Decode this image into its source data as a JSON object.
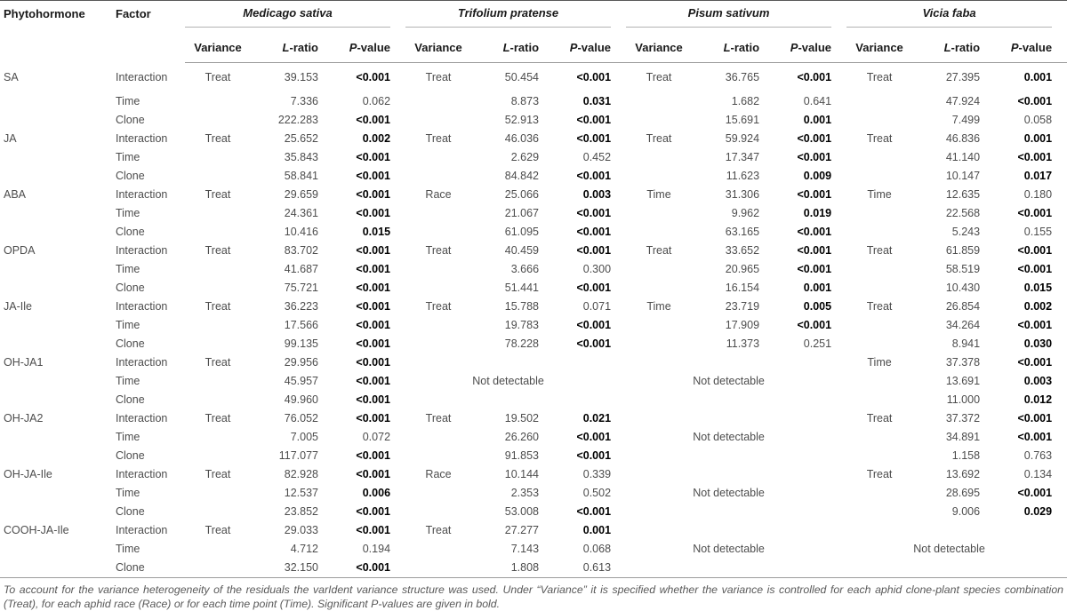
{
  "header": {
    "phytohormone": "Phytohormone",
    "factor": "Factor",
    "species": [
      "Medicago sativa",
      "Trifolium pratense",
      "Pisum sativum",
      "Vicia faba"
    ],
    "subcols": [
      "Variance",
      "L-ratio",
      "P-value"
    ]
  },
  "not_detectable_label": "Not detectable",
  "rows": [
    {
      "hormone": "SA",
      "factors": [
        "Interaction",
        "Time",
        "Clone"
      ],
      "groups": [
        {
          "variance": "Treat",
          "cells": [
            [
              "39.153",
              "<0.001",
              true
            ],
            [
              "7.336",
              "0.062",
              false
            ],
            [
              "222.283",
              "<0.001",
              true
            ]
          ]
        },
        {
          "variance": "Treat",
          "cells": [
            [
              "50.454",
              "<0.001",
              true
            ],
            [
              "8.873",
              "0.031",
              true
            ],
            [
              "52.913",
              "<0.001",
              true
            ]
          ]
        },
        {
          "variance": "Treat",
          "cells": [
            [
              "36.765",
              "<0.001",
              true
            ],
            [
              "1.682",
              "0.641",
              false
            ],
            [
              "15.691",
              "0.001",
              true
            ]
          ]
        },
        {
          "variance": "Treat",
          "cells": [
            [
              "27.395",
              "0.001",
              true
            ],
            [
              "47.924",
              "<0.001",
              true
            ],
            [
              "7.499",
              "0.058",
              false
            ]
          ]
        }
      ]
    },
    {
      "hormone": "JA",
      "factors": [
        "Interaction",
        "Time",
        "Clone"
      ],
      "groups": [
        {
          "variance": "Treat",
          "cells": [
            [
              "25.652",
              "0.002",
              true
            ],
            [
              "35.843",
              "<0.001",
              true
            ],
            [
              "58.841",
              "<0.001",
              true
            ]
          ]
        },
        {
          "variance": "Treat",
          "cells": [
            [
              "46.036",
              "<0.001",
              true
            ],
            [
              "2.629",
              "0.452",
              false
            ],
            [
              "84.842",
              "<0.001",
              true
            ]
          ]
        },
        {
          "variance": "Treat",
          "cells": [
            [
              "59.924",
              "<0.001",
              true
            ],
            [
              "17.347",
              "<0.001",
              true
            ],
            [
              "11.623",
              "0.009",
              true
            ]
          ]
        },
        {
          "variance": "Treat",
          "cells": [
            [
              "46.836",
              "0.001",
              true
            ],
            [
              "41.140",
              "<0.001",
              true
            ],
            [
              "10.147",
              "0.017",
              true
            ]
          ]
        }
      ]
    },
    {
      "hormone": "ABA",
      "factors": [
        "Interaction",
        "Time",
        "Clone"
      ],
      "groups": [
        {
          "variance": "Treat",
          "cells": [
            [
              "29.659",
              "<0.001",
              true
            ],
            [
              "24.361",
              "<0.001",
              true
            ],
            [
              "10.416",
              "0.015",
              true
            ]
          ]
        },
        {
          "variance": "Race",
          "cells": [
            [
              "25.066",
              "0.003",
              true
            ],
            [
              "21.067",
              "<0.001",
              true
            ],
            [
              "61.095",
              "<0.001",
              true
            ]
          ]
        },
        {
          "variance": "Time",
          "cells": [
            [
              "31.306",
              "<0.001",
              true
            ],
            [
              "9.962",
              "0.019",
              true
            ],
            [
              "63.165",
              "<0.001",
              true
            ]
          ]
        },
        {
          "variance": "Time",
          "cells": [
            [
              "12.635",
              "0.180",
              false
            ],
            [
              "22.568",
              "<0.001",
              true
            ],
            [
              "5.243",
              "0.155",
              false
            ]
          ]
        }
      ]
    },
    {
      "hormone": "OPDA",
      "factors": [
        "Interaction",
        "Time",
        "Clone"
      ],
      "groups": [
        {
          "variance": "Treat",
          "cells": [
            [
              "83.702",
              "<0.001",
              true
            ],
            [
              "41.687",
              "<0.001",
              true
            ],
            [
              "75.721",
              "<0.001",
              true
            ]
          ]
        },
        {
          "variance": "Treat",
          "cells": [
            [
              "40.459",
              "<0.001",
              true
            ],
            [
              "3.666",
              "0.300",
              false
            ],
            [
              "51.441",
              "<0.001",
              true
            ]
          ]
        },
        {
          "variance": "Treat",
          "cells": [
            [
              "33.652",
              "<0.001",
              true
            ],
            [
              "20.965",
              "<0.001",
              true
            ],
            [
              "16.154",
              "0.001",
              true
            ]
          ]
        },
        {
          "variance": "Treat",
          "cells": [
            [
              "61.859",
              "<0.001",
              true
            ],
            [
              "58.519",
              "<0.001",
              true
            ],
            [
              "10.430",
              "0.015",
              true
            ]
          ]
        }
      ]
    },
    {
      "hormone": "JA-Ile",
      "factors": [
        "Interaction",
        "Time",
        "Clone"
      ],
      "groups": [
        {
          "variance": "Treat",
          "cells": [
            [
              "36.223",
              "<0.001",
              true
            ],
            [
              "17.566",
              "<0.001",
              true
            ],
            [
              "99.135",
              "<0.001",
              true
            ]
          ]
        },
        {
          "variance": "Treat",
          "cells": [
            [
              "15.788",
              "0.071",
              false
            ],
            [
              "19.783",
              "<0.001",
              true
            ],
            [
              "78.228",
              "<0.001",
              true
            ]
          ]
        },
        {
          "variance": "Time",
          "cells": [
            [
              "23.719",
              "0.005",
              true
            ],
            [
              "17.909",
              "<0.001",
              true
            ],
            [
              "11.373",
              "0.251",
              false
            ]
          ]
        },
        {
          "variance": "Treat",
          "cells": [
            [
              "26.854",
              "0.002",
              true
            ],
            [
              "34.264",
              "<0.001",
              true
            ],
            [
              "8.941",
              "0.030",
              true
            ]
          ]
        }
      ]
    },
    {
      "hormone": "OH-JA1",
      "factors": [
        "Interaction",
        "Time",
        "Clone"
      ],
      "groups": [
        {
          "variance": "Treat",
          "cells": [
            [
              "29.956",
              "<0.001",
              true
            ],
            [
              "45.957",
              "<0.001",
              true
            ],
            [
              "49.960",
              "<0.001",
              true
            ]
          ]
        },
        {
          "not_detectable": true
        },
        {
          "not_detectable": true
        },
        {
          "variance": "Time",
          "cells": [
            [
              "37.378",
              "<0.001",
              true
            ],
            [
              "13.691",
              "0.003",
              true
            ],
            [
              "11.000",
              "0.012",
              true
            ]
          ]
        }
      ]
    },
    {
      "hormone": "OH-JA2",
      "factors": [
        "Interaction",
        "Time",
        "Clone"
      ],
      "groups": [
        {
          "variance": "Treat",
          "cells": [
            [
              "76.052",
              "<0.001",
              true
            ],
            [
              "7.005",
              "0.072",
              false
            ],
            [
              "117.077",
              "<0.001",
              true
            ]
          ]
        },
        {
          "variance": "Treat",
          "cells": [
            [
              "19.502",
              "0.021",
              true
            ],
            [
              "26.260",
              "<0.001",
              true
            ],
            [
              "91.853",
              "<0.001",
              true
            ]
          ]
        },
        {
          "not_detectable": true
        },
        {
          "variance": "Treat",
          "cells": [
            [
              "37.372",
              "<0.001",
              true
            ],
            [
              "34.891",
              "<0.001",
              true
            ],
            [
              "1.158",
              "0.763",
              false
            ]
          ]
        }
      ]
    },
    {
      "hormone": "OH-JA-Ile",
      "factors": [
        "Interaction",
        "Time",
        "Clone"
      ],
      "groups": [
        {
          "variance": "Treat",
          "cells": [
            [
              "82.928",
              "<0.001",
              true
            ],
            [
              "12.537",
              "0.006",
              true
            ],
            [
              "23.852",
              "<0.001",
              true
            ]
          ]
        },
        {
          "variance": "Race",
          "cells": [
            [
              "10.144",
              "0.339",
              false
            ],
            [
              "2.353",
              "0.502",
              false
            ],
            [
              "53.008",
              "<0.001",
              true
            ]
          ]
        },
        {
          "not_detectable": true
        },
        {
          "variance": "Treat",
          "cells": [
            [
              "13.692",
              "0.134",
              false
            ],
            [
              "28.695",
              "<0.001",
              true
            ],
            [
              "9.006",
              "0.029",
              true
            ]
          ]
        }
      ]
    },
    {
      "hormone": "COOH-JA-Ile",
      "factors": [
        "Interaction",
        "Time",
        "Clone"
      ],
      "groups": [
        {
          "variance": "Treat",
          "cells": [
            [
              "29.033",
              "<0.001",
              true
            ],
            [
              "4.712",
              "0.194",
              false
            ],
            [
              "32.150",
              "<0.001",
              true
            ]
          ]
        },
        {
          "variance": "Treat",
          "cells": [
            [
              "27.277",
              "0.001",
              true
            ],
            [
              "7.143",
              "0.068",
              false
            ],
            [
              "1.808",
              "0.613",
              false
            ]
          ]
        },
        {
          "not_detectable": true
        },
        {
          "not_detectable": true
        }
      ]
    }
  ],
  "footnote": "To account for the variance heterogeneity of the residuals the varIdent variance structure was used. Under “Variance” it is specified whether the variance is controlled for each aphid clone-plant species combination (Treat), for each aphid race (Race) or for each time point (Time). Significant P-values are given in bold."
}
